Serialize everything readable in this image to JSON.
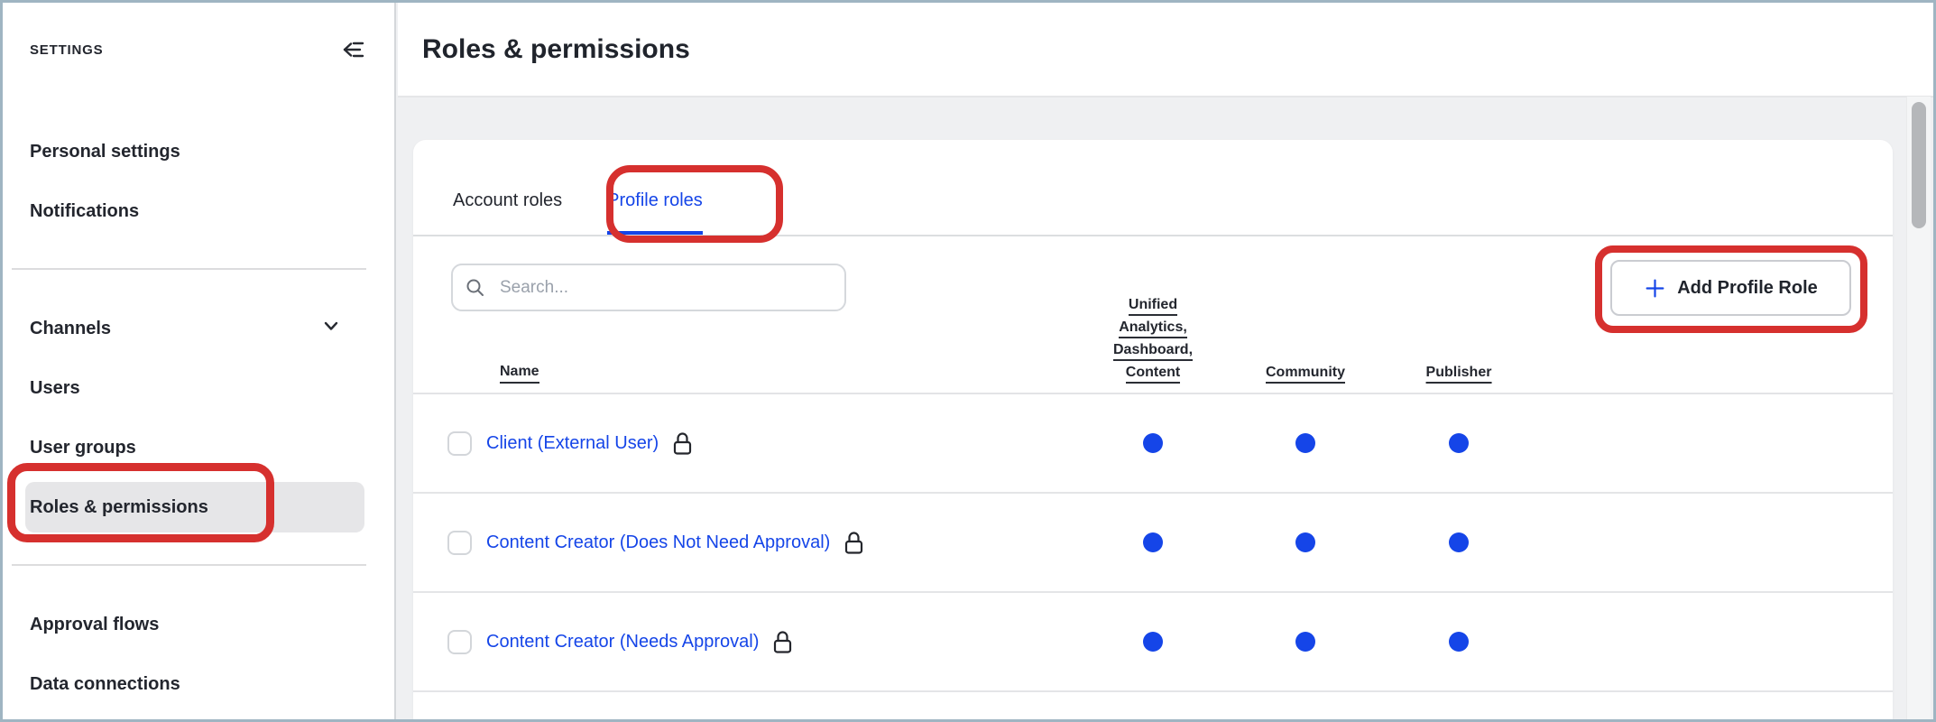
{
  "sidebar": {
    "title": "SETTINGS",
    "groups": [
      {
        "items": [
          {
            "label": "Personal settings"
          },
          {
            "label": "Notifications"
          }
        ]
      },
      {
        "items": [
          {
            "label": "Channels",
            "chevron": true
          },
          {
            "label": "Users"
          },
          {
            "label": "User groups"
          },
          {
            "label": "Roles & permissions",
            "active": true
          }
        ]
      },
      {
        "items": [
          {
            "label": "Approval flows"
          },
          {
            "label": "Data connections"
          }
        ]
      }
    ]
  },
  "header": {
    "title": "Roles & permissions"
  },
  "tabs": [
    {
      "label": "Account roles",
      "active": false
    },
    {
      "label": "Profile roles",
      "active": true
    }
  ],
  "toolbar": {
    "search_placeholder": "Search...",
    "add_button_label": "Add Profile Role"
  },
  "table": {
    "name_header": "Name",
    "permission_columns": [
      {
        "label": "Unified Analytics, Dashboard, Content",
        "lines": [
          "Unified",
          "Analytics,",
          "Dashboard,",
          "Content"
        ]
      },
      {
        "label": "Community",
        "lines": [
          "Community"
        ]
      },
      {
        "label": "Publisher",
        "lines": [
          "Publisher"
        ]
      }
    ],
    "rows": [
      {
        "name": "Client (External User)",
        "locked": true,
        "dots": [
          true,
          true,
          true
        ]
      },
      {
        "name": "Content Creator (Does Not Need Approval)",
        "locked": true,
        "dots": [
          true,
          true,
          true
        ]
      },
      {
        "name": "Content Creator (Needs Approval)",
        "locked": true,
        "dots": [
          true,
          true,
          true
        ]
      }
    ]
  },
  "colors": {
    "accent_blue": "#1545e8",
    "annotation_red": "#d6302e",
    "active_item_pill": "#e6e6e8",
    "dot_blue": "#1545e8"
  }
}
